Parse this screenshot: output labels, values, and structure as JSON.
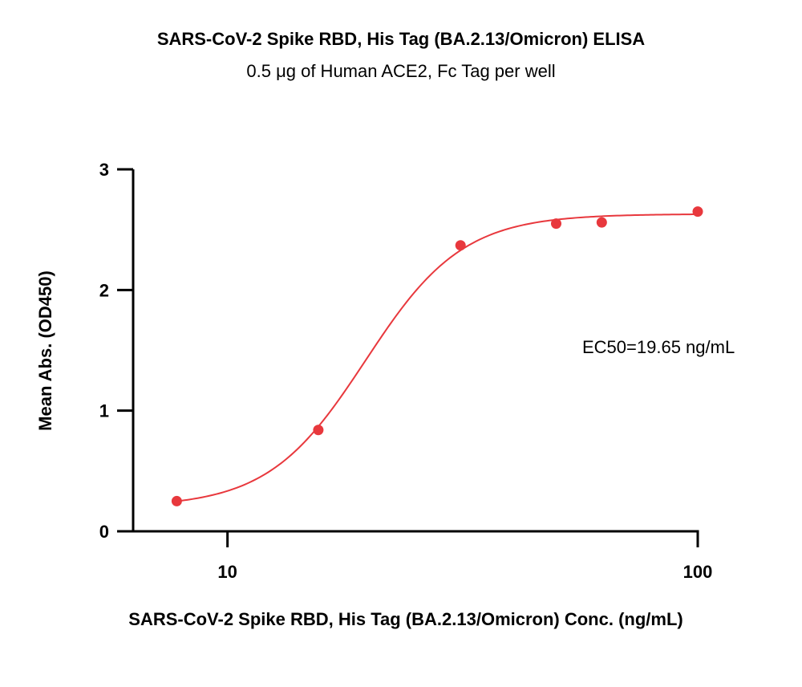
{
  "chart_data": {
    "type": "scatter",
    "title": "SARS-CoV-2 Spike RBD, His Tag (BA.2.13/Omicron) ELISA",
    "subtitle": "0.5 μg of Human ACE2, Fc Tag per well",
    "xlabel": "SARS-CoV-2 Spike RBD, His Tag (BA.2.13/Omicron) Conc. (ng/mL)",
    "ylabel": "Mean Abs. (OD450)",
    "xscale": "log",
    "xlim": [
      6.3,
      100
    ],
    "ylim": [
      0,
      3
    ],
    "xticks": [
      10,
      100
    ],
    "xtick_labels": [
      "10",
      "100"
    ],
    "yticks": [
      0,
      1,
      2,
      3
    ],
    "ytick_labels": [
      "0",
      "1",
      "2",
      "3"
    ],
    "grid": false,
    "legend": "none",
    "annotation": "EC50=19.65 ng/mL",
    "color": "#e8383d",
    "series": [
      {
        "points": [
          {
            "x": 7.8,
            "y": 0.25
          },
          {
            "x": 15.6,
            "y": 0.84
          },
          {
            "x": 31.3,
            "y": 2.37
          },
          {
            "x": 50,
            "y": 2.55
          },
          {
            "x": 62.5,
            "y": 2.56
          },
          {
            "x": 100,
            "y": 2.65
          }
        ],
        "fit": {
          "model": "4PL",
          "bottom": 0.2,
          "top": 2.63,
          "ec50": 19.65,
          "hill": 4.2
        }
      }
    ]
  }
}
